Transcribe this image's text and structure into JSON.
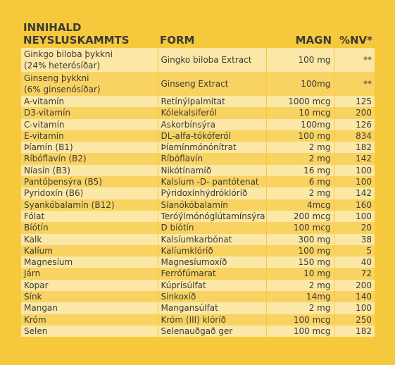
{
  "header": {
    "title": "INNIHALD",
    "columns": [
      "NEYSLUSKAMMTS",
      "FORM",
      "MAGN",
      "%NV*"
    ]
  },
  "table": {
    "rows": [
      [
        "Ginkgo biloba þykkni\n(24% heterósíðar)",
        "Gingko biloba Extract",
        "100 mg",
        "**"
      ],
      [
        "Ginseng þykkni\n(6% ginsenósíðar)",
        "Ginseng Extract",
        "100mg",
        "**"
      ],
      [
        "A-vitamín",
        "Retínýlpalmitat",
        "1000 mcg",
        "125"
      ],
      [
        "D3-vitamín",
        "Kólekalsiferól",
        "10 mcg",
        "200"
      ],
      [
        "C-vitamín",
        "Askorbínsýra",
        "100mg",
        "126"
      ],
      [
        "E-vitamín",
        "DL-alfa-tókóferól",
        "100 mg",
        "834"
      ],
      [
        "Þíamín (B1)",
        "Þíamínmónónítrat",
        "2 mg",
        "182"
      ],
      [
        "Ríbóflavín (B2)",
        "Ríbóflavín",
        "2 mg",
        "142"
      ],
      [
        "Níasín (B3)",
        "Nikótínamíð",
        "16 mg",
        "100"
      ],
      [
        "Pantóþensýra (B5)",
        "Kalsíum -D- pantótenat",
        "6 mg",
        "100"
      ],
      [
        "Pyridoxín (B6)",
        "Pýridoxínhýdróklóríð",
        "2 mg",
        "142"
      ],
      [
        "Syankóbalamín (B12)",
        "Síanókóbalamín",
        "4mcg",
        "160"
      ],
      [
        "Fólat",
        "Teróýlmónóglútamínsýra",
        "200 mcg",
        "100"
      ],
      [
        "Bíótín",
        "D bíótín",
        "100 mcg",
        "20"
      ],
      [
        "Kalk",
        "Kalsíumkarbónat",
        "300 mg",
        "38"
      ],
      [
        "Kalíum",
        "Kalíumklóríð",
        "100 mg",
        "5"
      ],
      [
        "Magnesíum",
        "Magnesíumoxíð",
        "150 mg",
        "40"
      ],
      [
        "Járn",
        "Ferrófúmarat",
        "10 mg",
        "72"
      ],
      [
        "Kopar",
        "Kúprísúlfat",
        "2 mg",
        "200"
      ],
      [
        "Sínk",
        "Sinkoxíð",
        "14mg",
        "140"
      ],
      [
        "Mangan",
        "Mangansúlfat",
        "2 mg",
        "100"
      ],
      [
        "Króm",
        "Króm (III) klóríð",
        "100 mcg",
        "250"
      ],
      [
        "Selen",
        "Selenauðgað ger",
        "100 mcg",
        "182"
      ]
    ]
  }
}
